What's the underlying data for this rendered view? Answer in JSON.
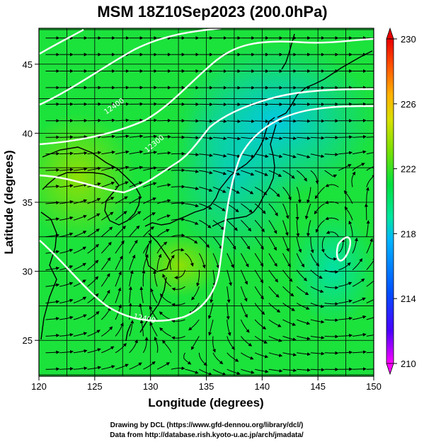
{
  "title": "MSM 18Z10Sep2023 (200.0hPa)",
  "axes": {
    "xlabel": "Longitude (degrees)",
    "ylabel": "Latitude  (degrees)",
    "xlim": [
      120,
      150
    ],
    "ylim": [
      22.4,
      47.6
    ],
    "xticks": [
      120,
      125,
      130,
      135,
      140,
      145,
      150
    ],
    "yticks": [
      25,
      30,
      35,
      40,
      45
    ],
    "grid": true
  },
  "colorbar": {
    "min": 210,
    "max": 230,
    "ticks": [
      210,
      214,
      218,
      222,
      226,
      230
    ],
    "colors": [
      "#ff00ff",
      "#4a00ff",
      "#0050ff",
      "#00b4ff",
      "#00e6a0",
      "#00e040",
      "#7ee000",
      "#d8e000",
      "#ffb000",
      "#ff5000",
      "#e80000"
    ]
  },
  "contours": [
    {
      "label": "12400"
    },
    {
      "label": "12300"
    },
    {
      "label": "12400"
    }
  ],
  "credits": {
    "line1": "Drawing by DCL (https://www.gfd-dennou.org/library/dcl/)",
    "line2": "Data from http://database.rish.kyoto-u.ac.jp/arch/jmadata/"
  },
  "chart_data": {
    "type": "heatmap",
    "field": "200.0hPa temperature with streamlines and height contours",
    "title": "MSM 18Z10Sep2023 (200.0hPa)",
    "xlabel": "Longitude (degrees)",
    "ylabel": "Latitude  (degrees)",
    "xlim": [
      120,
      150
    ],
    "ylim": [
      22.4,
      47.6
    ],
    "value_range": [
      210,
      230
    ],
    "features": [
      {
        "kind": "anticyclone",
        "lon": 132.5,
        "lat": 30.7
      },
      {
        "kind": "cyclone",
        "lon": 146.3,
        "lat": 31.6
      },
      {
        "kind": "cold core",
        "lon": 138.5,
        "lat": 43.5
      }
    ]
  }
}
